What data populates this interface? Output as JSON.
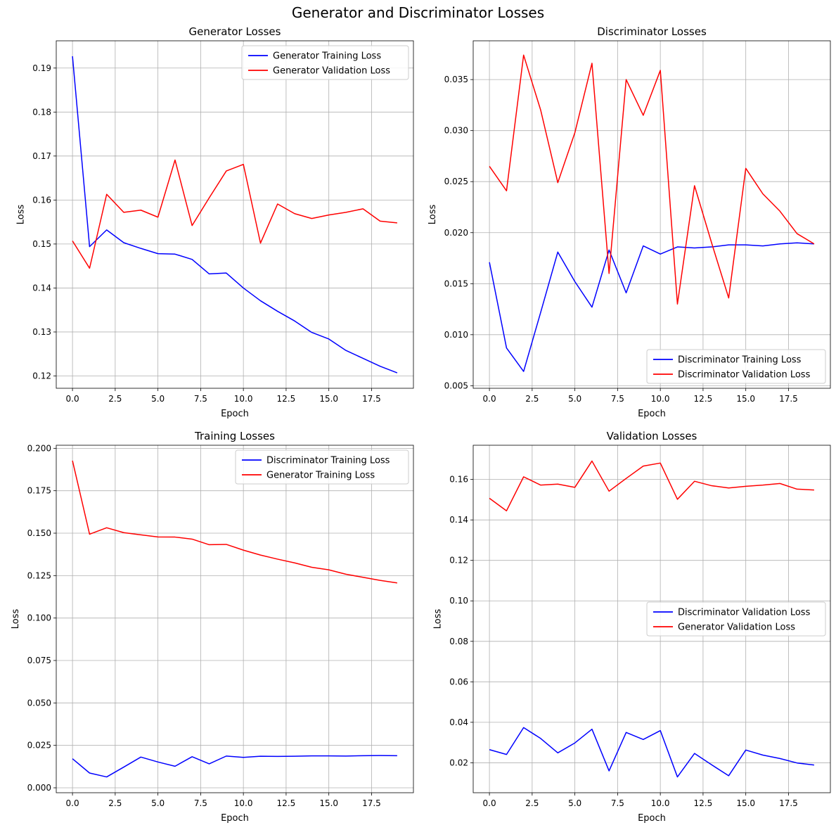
{
  "figure": {
    "suptitle": "Generator and Discriminator Losses"
  },
  "chart_data": [
    {
      "type": "line",
      "title": "Generator Losses",
      "xlabel": "Epoch",
      "ylabel": "Loss",
      "xlim": [
        -0.95,
        19.95
      ],
      "ylim": [
        0.1172,
        0.1962
      ],
      "xticks": [
        0.0,
        2.5,
        5.0,
        7.5,
        10.0,
        12.5,
        15.0,
        17.5
      ],
      "xtick_labels": [
        "0.0",
        "2.5",
        "5.0",
        "7.5",
        "10.0",
        "12.5",
        "15.0",
        "17.5"
      ],
      "yticks": [
        0.12,
        0.13,
        0.14,
        0.15,
        0.16,
        0.17,
        0.18,
        0.19
      ],
      "ytick_labels": [
        "0.12",
        "0.13",
        "0.14",
        "0.15",
        "0.16",
        "0.17",
        "0.18",
        "0.19"
      ],
      "grid": true,
      "legend_position": "top-right",
      "x": [
        0,
        1,
        2,
        3,
        4,
        5,
        6,
        7,
        8,
        9,
        10,
        11,
        12,
        13,
        14,
        15,
        16,
        17,
        18,
        19
      ],
      "series": [
        {
          "name": "Generator Training Loss",
          "color": "#0000ff",
          "values": [
            0.1927,
            0.1494,
            0.1532,
            0.1503,
            0.149,
            0.1478,
            0.1477,
            0.1465,
            0.1432,
            0.1434,
            0.14,
            0.1371,
            0.1347,
            0.1325,
            0.1299,
            0.1284,
            0.1258,
            0.124,
            0.1222,
            0.1207
          ]
        },
        {
          "name": "Generator Validation Loss",
          "color": "#ff0000",
          "values": [
            0.1507,
            0.1445,
            0.1613,
            0.1572,
            0.1577,
            0.1561,
            0.1691,
            0.1542,
            0.1605,
            0.1666,
            0.1681,
            0.1502,
            0.1591,
            0.1569,
            0.1558,
            0.1566,
            0.1572,
            0.158,
            0.1552,
            0.1548
          ]
        }
      ]
    },
    {
      "type": "line",
      "title": "Discriminator Losses",
      "xlabel": "Epoch",
      "ylabel": "Loss",
      "xlim": [
        -0.95,
        19.95
      ],
      "ylim": [
        0.00475,
        0.0388
      ],
      "xticks": [
        0.0,
        2.5,
        5.0,
        7.5,
        10.0,
        12.5,
        15.0,
        17.5
      ],
      "xtick_labels": [
        "0.0",
        "2.5",
        "5.0",
        "7.5",
        "10.0",
        "12.5",
        "15.0",
        "17.5"
      ],
      "yticks": [
        0.005,
        0.01,
        0.015,
        0.02,
        0.025,
        0.03,
        0.035
      ],
      "ytick_labels": [
        "0.005",
        "0.010",
        "0.015",
        "0.020",
        "0.025",
        "0.030",
        "0.035"
      ],
      "grid": true,
      "legend_position": "bottom-right",
      "x": [
        0,
        1,
        2,
        3,
        4,
        5,
        6,
        7,
        8,
        9,
        10,
        11,
        12,
        13,
        14,
        15,
        16,
        17,
        18,
        19
      ],
      "series": [
        {
          "name": "Discriminator Training Loss",
          "color": "#0000ff",
          "values": [
            0.0171,
            0.0087,
            0.0064,
            0.0122,
            0.0181,
            0.0152,
            0.0127,
            0.0183,
            0.0141,
            0.0187,
            0.0179,
            0.0186,
            0.0185,
            0.0186,
            0.0188,
            0.0188,
            0.0187,
            0.0189,
            0.019,
            0.0189
          ]
        },
        {
          "name": "Discriminator Validation Loss",
          "color": "#ff0000",
          "values": [
            0.0265,
            0.0241,
            0.0374,
            0.032,
            0.0249,
            0.0298,
            0.0366,
            0.016,
            0.035,
            0.0315,
            0.0359,
            0.013,
            0.0246,
            0.019,
            0.0136,
            0.0263,
            0.0238,
            0.0221,
            0.0199,
            0.0189
          ]
        }
      ]
    },
    {
      "type": "line",
      "title": "Training Losses",
      "xlabel": "Epoch",
      "ylabel": "Loss",
      "xlim": [
        -0.95,
        19.95
      ],
      "ylim": [
        -0.0029,
        0.2018
      ],
      "xticks": [
        0.0,
        2.5,
        5.0,
        7.5,
        10.0,
        12.5,
        15.0,
        17.5
      ],
      "xtick_labels": [
        "0.0",
        "2.5",
        "5.0",
        "7.5",
        "10.0",
        "12.5",
        "15.0",
        "17.5"
      ],
      "yticks": [
        0.0,
        0.025,
        0.05,
        0.075,
        0.1,
        0.125,
        0.15,
        0.175,
        0.2
      ],
      "ytick_labels": [
        "0.000",
        "0.025",
        "0.050",
        "0.075",
        "0.100",
        "0.125",
        "0.150",
        "0.175",
        "0.200"
      ],
      "grid": true,
      "legend_position": "top-right",
      "x": [
        0,
        1,
        2,
        3,
        4,
        5,
        6,
        7,
        8,
        9,
        10,
        11,
        12,
        13,
        14,
        15,
        16,
        17,
        18,
        19
      ],
      "series": [
        {
          "name": "Discriminator Training Loss",
          "color": "#0000ff",
          "values": [
            0.0171,
            0.0087,
            0.0064,
            0.0122,
            0.0181,
            0.0152,
            0.0127,
            0.0183,
            0.0141,
            0.0187,
            0.0179,
            0.0186,
            0.0185,
            0.0186,
            0.0188,
            0.0188,
            0.0187,
            0.0189,
            0.019,
            0.0189
          ]
        },
        {
          "name": "Generator Training Loss",
          "color": "#ff0000",
          "values": [
            0.1927,
            0.1494,
            0.1532,
            0.1503,
            0.149,
            0.1478,
            0.1477,
            0.1465,
            0.1432,
            0.1434,
            0.14,
            0.1371,
            0.1347,
            0.1325,
            0.1299,
            0.1284,
            0.1258,
            0.124,
            0.1222,
            0.1207
          ]
        }
      ]
    },
    {
      "type": "line",
      "title": "Validation Losses",
      "xlabel": "Epoch",
      "ylabel": "Loss",
      "xlim": [
        -0.95,
        19.95
      ],
      "ylim": [
        0.0052,
        0.1769
      ],
      "xticks": [
        0.0,
        2.5,
        5.0,
        7.5,
        10.0,
        12.5,
        15.0,
        17.5
      ],
      "xtick_labels": [
        "0.0",
        "2.5",
        "5.0",
        "7.5",
        "10.0",
        "12.5",
        "15.0",
        "17.5"
      ],
      "yticks": [
        0.02,
        0.04,
        0.06,
        0.08,
        0.1,
        0.12,
        0.14,
        0.16
      ],
      "ytick_labels": [
        "0.02",
        "0.04",
        "0.06",
        "0.08",
        "0.10",
        "0.12",
        "0.14",
        "0.16"
      ],
      "grid": true,
      "legend_position": "center-right",
      "x": [
        0,
        1,
        2,
        3,
        4,
        5,
        6,
        7,
        8,
        9,
        10,
        11,
        12,
        13,
        14,
        15,
        16,
        17,
        18,
        19
      ],
      "series": [
        {
          "name": "Discriminator Validation Loss",
          "color": "#0000ff",
          "values": [
            0.0265,
            0.0241,
            0.0374,
            0.032,
            0.0249,
            0.0298,
            0.0366,
            0.016,
            0.035,
            0.0315,
            0.0359,
            0.013,
            0.0246,
            0.019,
            0.0136,
            0.0263,
            0.0238,
            0.0221,
            0.0199,
            0.0189
          ]
        },
        {
          "name": "Generator Validation Loss",
          "color": "#ff0000",
          "values": [
            0.1507,
            0.1445,
            0.1613,
            0.1572,
            0.1577,
            0.1561,
            0.1691,
            0.1542,
            0.1605,
            0.1666,
            0.1681,
            0.1502,
            0.1591,
            0.1569,
            0.1558,
            0.1566,
            0.1572,
            0.158,
            0.1552,
            0.1548
          ]
        }
      ]
    }
  ]
}
